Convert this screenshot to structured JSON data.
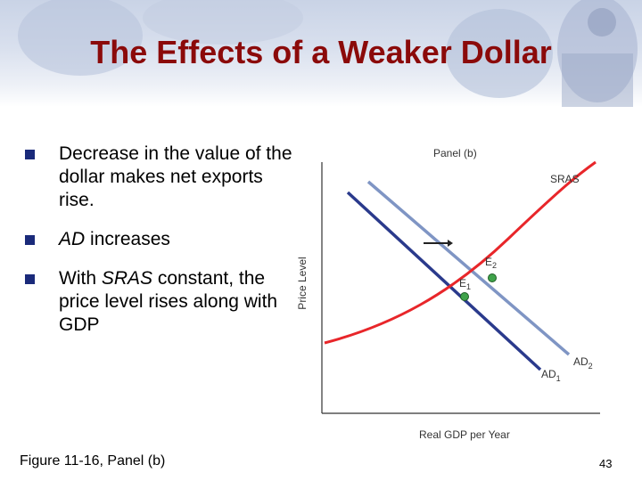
{
  "slide": {
    "title": "The Effects of a Weaker Dollar",
    "bullets": [
      {
        "pre": "",
        "em": "",
        "post": "Decrease in the value of the dollar makes net exports rise."
      },
      {
        "pre": "",
        "em": "AD",
        "post": " increases"
      },
      {
        "pre": "With ",
        "em": "SRAS",
        "post": " constant, the price level rises along with GDP"
      }
    ],
    "caption": "Figure 11-16, Panel (b)",
    "page_number": "43"
  },
  "diagram": {
    "panel_label": "Panel (b)",
    "y_axis_label": "Price Level",
    "x_axis_label": "Real GDP per Year",
    "curves": {
      "sras": "SRAS",
      "ad1": {
        "base": "AD",
        "sub": "1"
      },
      "ad2": {
        "base": "AD",
        "sub": "2"
      }
    },
    "points": {
      "e1": {
        "base": "E",
        "sub": "1"
      },
      "e2": {
        "base": "E",
        "sub": "2"
      }
    },
    "colors": {
      "title": "#8b0a0a",
      "sras": "#e8262a",
      "ad1": "#2a3a8c",
      "ad2": "#7f95c4",
      "equilibrium": "#3fa34a",
      "bullet": "#1a2a7a"
    }
  }
}
